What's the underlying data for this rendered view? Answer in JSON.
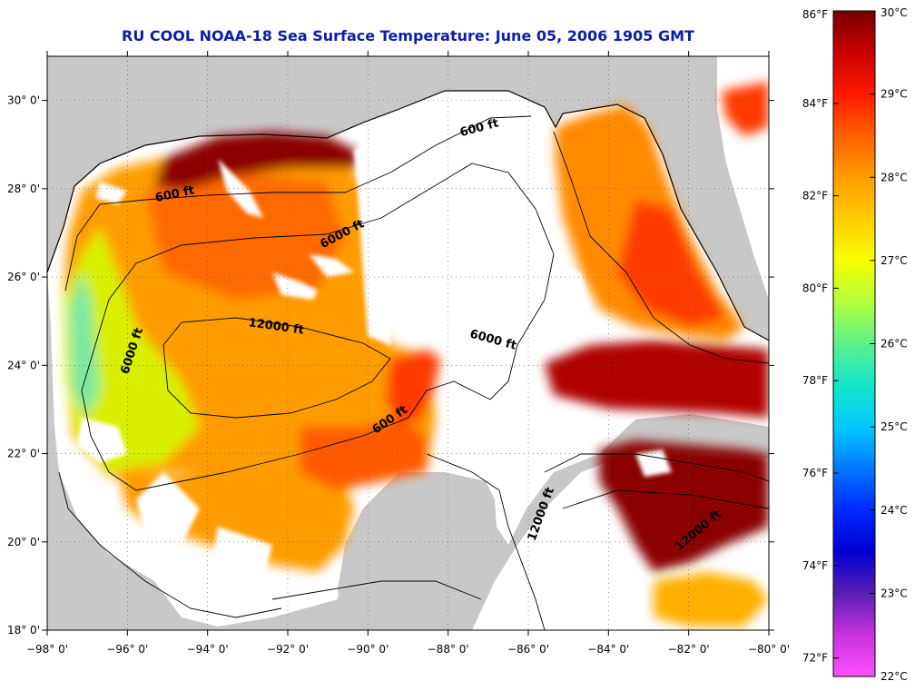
{
  "title": "RU COOL  NOAA-18  Sea Surface Temperature:  June 05, 2006 1905 GMT",
  "map": {
    "lon_range": [
      -98,
      -80
    ],
    "lat_range": [
      18,
      31
    ],
    "lon_ticks": [
      {
        "value": -98,
        "label": "−98° 0'"
      },
      {
        "value": -96,
        "label": "−96° 0'"
      },
      {
        "value": -94,
        "label": "−94° 0'"
      },
      {
        "value": -92,
        "label": "−92° 0'"
      },
      {
        "value": -90,
        "label": "−90° 0'"
      },
      {
        "value": -88,
        "label": "−88° 0'"
      },
      {
        "value": -86,
        "label": "−86° 0'"
      },
      {
        "value": -84,
        "label": "−84° 0'"
      },
      {
        "value": -82,
        "label": "−82° 0'"
      },
      {
        "value": -80,
        "label": "−80° 0'"
      }
    ],
    "lat_ticks": [
      {
        "value": 30,
        "label": "30° 0'"
      },
      {
        "value": 28,
        "label": "28° 0'"
      },
      {
        "value": 26,
        "label": "26° 0'"
      },
      {
        "value": 24,
        "label": "24° 0'"
      },
      {
        "value": 22,
        "label": "22° 0'"
      },
      {
        "value": 20,
        "label": "20° 0'"
      },
      {
        "value": 18,
        "label": "18° 0'"
      }
    ],
    "contour_labels": [
      {
        "text": "600 ft",
        "lon": -94.8,
        "lat": 27.8,
        "rot": -12
      },
      {
        "text": "6000 ft",
        "lon": -90.6,
        "lat": 26.9,
        "rot": -28
      },
      {
        "text": "600 ft",
        "lon": -87.2,
        "lat": 29.3,
        "rot": -15
      },
      {
        "text": "12000 ft",
        "lon": -92.3,
        "lat": 24.8,
        "rot": 8
      },
      {
        "text": "6000 ft",
        "lon": -95.8,
        "lat": 24.3,
        "rot": -72
      },
      {
        "text": "6000 ft",
        "lon": -86.9,
        "lat": 24.5,
        "rot": 15
      },
      {
        "text": "600 ft",
        "lon": -89.4,
        "lat": 22.7,
        "rot": -35
      },
      {
        "text": "12000 ft",
        "lon": -85.6,
        "lat": 20.6,
        "rot": -70
      },
      {
        "text": "12000 ft",
        "lon": -81.7,
        "lat": 20.2,
        "rot": -40
      }
    ],
    "colors": {
      "land": "#c8c8c8",
      "ocean_nodata": "#ffffff",
      "hot": "#8b0000",
      "warm": "#ff3a00",
      "mid": "#ff9a00",
      "cool": "#d8f000",
      "cold": "#7de8a0"
    }
  },
  "colorbar": {
    "left_labels": [
      {
        "value": 86,
        "label": "86°F"
      },
      {
        "value": 84,
        "label": "84°F"
      },
      {
        "value": 82,
        "label": "82°F"
      },
      {
        "value": 80,
        "label": "80°F"
      },
      {
        "value": 78,
        "label": "78°F"
      },
      {
        "value": 76,
        "label": "76°F"
      },
      {
        "value": 74,
        "label": "74°F"
      },
      {
        "value": 72,
        "label": "72°F"
      }
    ],
    "right_labels": [
      {
        "value": 30,
        "label": "30°C"
      },
      {
        "value": 29,
        "label": "29°C"
      },
      {
        "value": 28,
        "label": "28°C"
      },
      {
        "value": 27,
        "label": "27°C"
      },
      {
        "value": 26,
        "label": "26°C"
      },
      {
        "value": 25,
        "label": "25°C"
      },
      {
        "value": 24,
        "label": "24°C"
      },
      {
        "value": 23,
        "label": "23°C"
      },
      {
        "value": 22,
        "label": "22°C"
      }
    ],
    "range_c": [
      22,
      30
    ],
    "stops": [
      {
        "c": 30,
        "color": "#7a0000"
      },
      {
        "c": 29.5,
        "color": "#c80000"
      },
      {
        "c": 29,
        "color": "#ff1a00"
      },
      {
        "c": 28.5,
        "color": "#ff6000"
      },
      {
        "c": 28,
        "color": "#ff9c00"
      },
      {
        "c": 27.5,
        "color": "#ffcc00"
      },
      {
        "c": 27,
        "color": "#f5ff00"
      },
      {
        "c": 26.5,
        "color": "#b4ff3c"
      },
      {
        "c": 26,
        "color": "#5cf08c"
      },
      {
        "c": 25.5,
        "color": "#14e6c8"
      },
      {
        "c": 25,
        "color": "#00c8ff"
      },
      {
        "c": 24.5,
        "color": "#0078ff"
      },
      {
        "c": 24,
        "color": "#0028ff"
      },
      {
        "c": 23.5,
        "color": "#0000d2"
      },
      {
        "c": 23,
        "color": "#5a1eb4"
      },
      {
        "c": 22.5,
        "color": "#c832dc"
      },
      {
        "c": 22,
        "color": "#ff50ff"
      }
    ]
  }
}
